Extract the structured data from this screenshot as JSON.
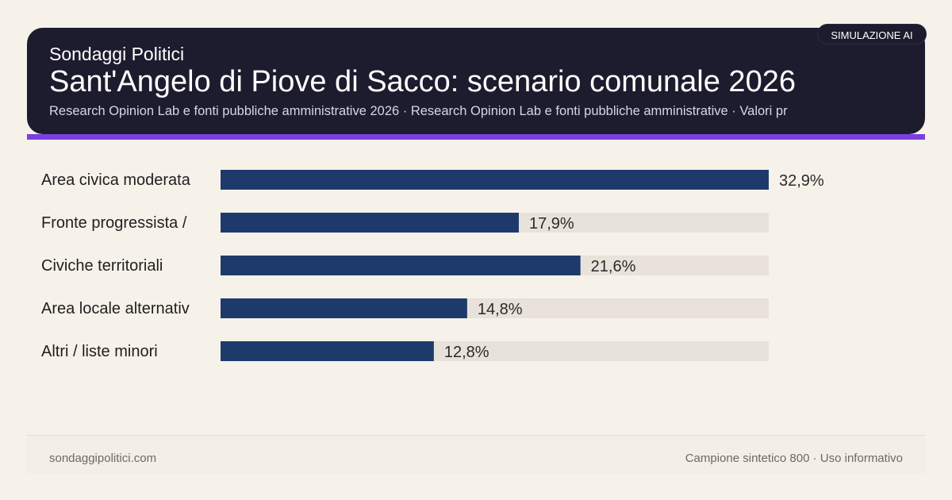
{
  "header": {
    "brand": "Sondaggi Politici",
    "title": "Sant'Angelo di Piove di Sacco: scenario comunale 2026",
    "subtitle": "Research Opinion Lab e fonti pubbliche amministrative 2026 · Research Opinion Lab e fonti pubbliche amministrative · Valori pr",
    "badge": "SIMULAZIONE AI"
  },
  "colors": {
    "header_bg": "#1d1c2e",
    "accent": "#7b3fe0",
    "bar": "#1e3a6b",
    "track": "#e8e2da",
    "page_bg": "#f6f2ea"
  },
  "chart_data": {
    "type": "bar",
    "orientation": "horizontal",
    "categories": [
      "Area civica moderata",
      "Fronte progressista /",
      "Civiche territoriali",
      "Area locale alternativ",
      "Altri / liste minori"
    ],
    "values": [
      32.9,
      17.9,
      21.6,
      14.8,
      12.8
    ],
    "value_labels": [
      "32,9%",
      "17,9%",
      "21,6%",
      "14,8%",
      "12,8%"
    ],
    "xlim": [
      0,
      32.9
    ],
    "grid": false
  },
  "footer": {
    "left": "sondaggipolitici.com",
    "right": "Campione sintetico 800 · Uso informativo"
  }
}
